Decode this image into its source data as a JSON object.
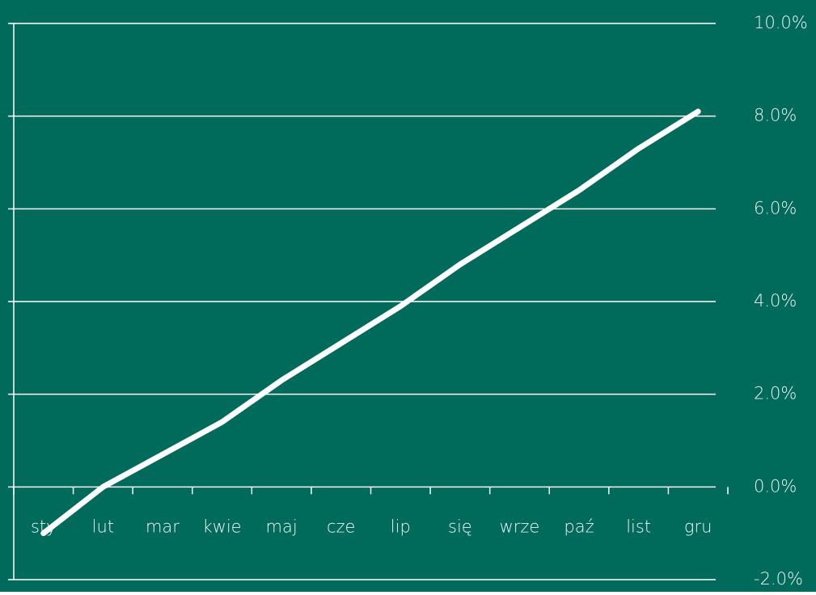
{
  "chart_data": {
    "type": "line",
    "categories": [
      "sty",
      "lut",
      "mar",
      "kwie",
      "maj",
      "cze",
      "lip",
      "się",
      "wrze",
      "paź",
      "list",
      "gru"
    ],
    "series": [
      {
        "color": "#ffffff",
        "values": [
          -1.0,
          0.0,
          0.7,
          1.4,
          2.3,
          3.1,
          3.9,
          4.8,
          5.6,
          6.4,
          7.3,
          8.1
        ]
      }
    ],
    "ylim": [
      -2,
      10
    ],
    "yticks": [
      {
        "value": -2,
        "label": "-2.0%"
      },
      {
        "value": 0,
        "label": "0.0%"
      },
      {
        "value": 2,
        "label": "2.0%"
      },
      {
        "value": 4,
        "label": "4.0%"
      },
      {
        "value": 6,
        "label": "6.0%"
      },
      {
        "value": 8,
        "label": "8.0%"
      },
      {
        "value": 10,
        "label": "10.0%"
      }
    ],
    "grid": true,
    "background": "#006a5b"
  }
}
